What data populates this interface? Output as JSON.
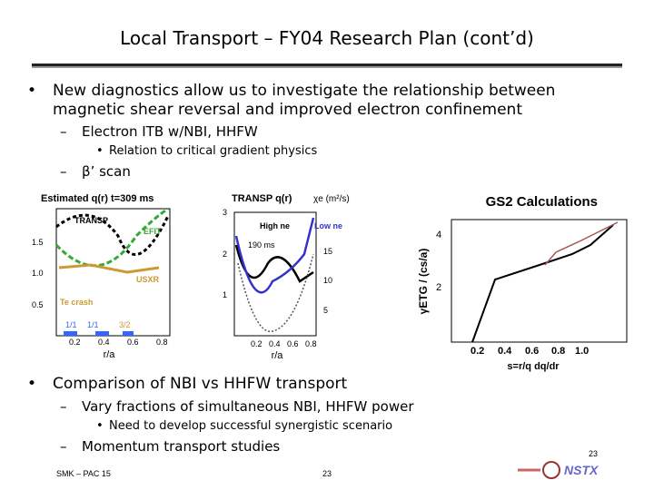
{
  "title": "Local Transport – FY04 Research Plan (cont’d)",
  "bullets": [
    {
      "text": "New diagnostics allow us to investigate the relationship between magnetic shear reversal and improved electron confinement",
      "items": [
        {
          "text": "Electron ITB w/NBI, HHFW",
          "items": [
            "Relation to critical gradient physics"
          ]
        },
        {
          "text": "β’ scan"
        }
      ]
    },
    {
      "text": "Comparison of NBI vs HHFW transport",
      "items": [
        {
          "text": "Vary fractions of simultaneous NBI, HHFW power",
          "items": [
            "Need to develop successful synergistic scenario"
          ]
        },
        {
          "text": "Momentum transport studies"
        }
      ]
    }
  ],
  "figures": {
    "q_profile": {
      "title": "Estimated q(r)  t=309 ms",
      "labels": [
        "TRANSP",
        "EFIT",
        "USXR",
        "Te crash",
        "1/1",
        "1/1",
        "3/2"
      ],
      "yticks": [
        "1.5",
        "1.0",
        "0.5"
      ],
      "xticks": [
        "0.2",
        "0.4",
        "0.6",
        "0.8"
      ],
      "xlabel": "r/a"
    },
    "transp": {
      "title": "TRANSP q(r)",
      "ytitle": "χe (m²/s)",
      "labels": [
        "High ne",
        "Low ne",
        "190 ms"
      ],
      "yticks": [
        "3",
        "2",
        "1"
      ],
      "y2ticks": [
        "15",
        "10",
        "5"
      ],
      "xticks": [
        "0.2",
        "0.4",
        "0.6",
        "0.8"
      ],
      "xlabel": "r/a"
    },
    "gs2": {
      "title": "GS2 Calculations",
      "ylabel": "γETG / (cs/a)",
      "yticks": [
        "4",
        "2"
      ],
      "xticks": [
        "0.2",
        "0.4",
        "0.6",
        "0.8",
        "1.0"
      ],
      "xlabel": "s=r/q dq/dr"
    }
  },
  "footer": {
    "left": "SMK – PAC 15",
    "center": "23",
    "page": "23",
    "logo": "NSTX"
  }
}
